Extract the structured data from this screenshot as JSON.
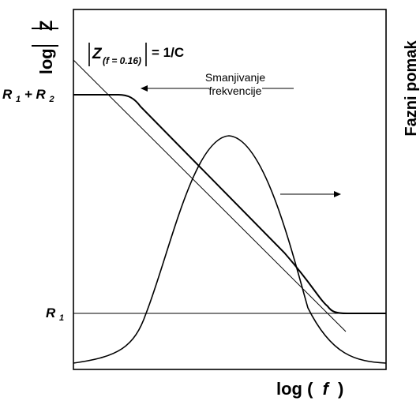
{
  "y_axis_label": {
    "log": "log",
    "z": "Z"
  },
  "y2_axis_label": "Fazni pomak",
  "x_axis_label": {
    "log": "log (",
    "f": "f",
    "close": ")"
  },
  "annotation": {
    "z": "Z",
    "sub": "(f = 0.16)",
    "eq": "= 1/C"
  },
  "arrow_left_label": [
    "Smanjivanje",
    "frekvencije"
  ],
  "levels": {
    "r1r2": {
      "r1": "R",
      "sub1": "1",
      "plus": " + R",
      "sub2": "2"
    },
    "r1": {
      "r": "R",
      "sub": "1"
    }
  },
  "colors": {
    "line": "#000000",
    "background": "#ffffff"
  }
}
